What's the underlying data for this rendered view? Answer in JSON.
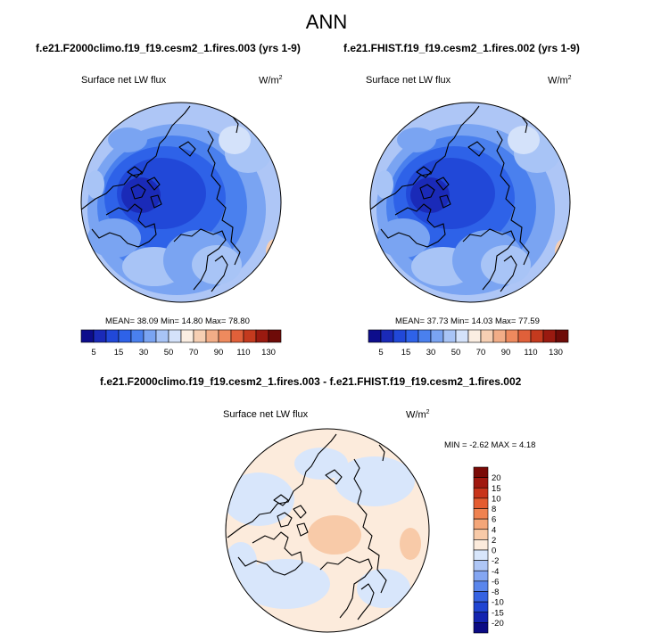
{
  "header": {
    "title": "ANN"
  },
  "panels": [
    {
      "title": "f.e21.F2000climo.f19_f19.cesm2_1.fires.003 (yrs 1-9)",
      "variable": "Surface net LW flux",
      "units": "W/m",
      "units_sup": "2",
      "stats": "MEAN= 38.09  Min= 14.80  Max= 78.80"
    },
    {
      "title": "f.e21.FHIST.f19_f19.cesm2_1.fires.002 (yrs 1-9)",
      "variable": "Surface net LW flux",
      "units": "W/m",
      "units_sup": "2",
      "stats": "MEAN= 37.73  Min= 14.03  Max= 77.59"
    },
    {
      "title": "f.e21.F2000climo.f19_f19.cesm2_1.fires.003 - f.e21.FHIST.f19_f19.cesm2_1.fires.002",
      "variable": "Surface net LW flux",
      "units": "W/m",
      "units_sup": "2",
      "stats": "MIN =  -2.62 MAX =   4.18"
    }
  ],
  "chart_data": [
    {
      "type": "heatmap",
      "projection": "north-polar-stereographic",
      "title": "f.e21.F2000climo.f19_f19.cesm2_1.fires.003 (yrs 1-9)",
      "variable": "Surface net LW flux",
      "units": "W/m2",
      "mean": 38.09,
      "min": 14.8,
      "max": 78.8,
      "colorbar": {
        "orientation": "horizontal",
        "levels": [
          5,
          10,
          15,
          20,
          30,
          40,
          50,
          60,
          70,
          80,
          90,
          100,
          110,
          120,
          130
        ],
        "tick_labels": [
          "5",
          "15",
          "30",
          "50",
          "70",
          "90",
          "110",
          "130"
        ],
        "colors": [
          "#0d0d8c",
          "#1a2ab8",
          "#2148d8",
          "#2e62e8",
          "#4a80ee",
          "#7aa4f2",
          "#a8c4f6",
          "#d4e2fa",
          "#fbeee2",
          "#f6cfb3",
          "#f2ad87",
          "#ee8a5e",
          "#e0603a",
          "#c43a1e",
          "#9a1a10",
          "#6e0b08"
        ]
      }
    },
    {
      "type": "heatmap",
      "projection": "north-polar-stereographic",
      "title": "f.e21.FHIST.f19_f19.cesm2_1.fires.002 (yrs 1-9)",
      "variable": "Surface net LW flux",
      "units": "W/m2",
      "mean": 37.73,
      "min": 14.03,
      "max": 77.59,
      "colorbar": {
        "orientation": "horizontal",
        "levels": [
          5,
          10,
          15,
          20,
          30,
          40,
          50,
          60,
          70,
          80,
          90,
          100,
          110,
          120,
          130
        ],
        "tick_labels": [
          "5",
          "15",
          "30",
          "50",
          "70",
          "90",
          "110",
          "130"
        ],
        "colors": [
          "#0d0d8c",
          "#1a2ab8",
          "#2148d8",
          "#2e62e8",
          "#4a80ee",
          "#7aa4f2",
          "#a8c4f6",
          "#d4e2fa",
          "#fbeee2",
          "#f6cfb3",
          "#f2ad87",
          "#ee8a5e",
          "#e0603a",
          "#c43a1e",
          "#9a1a10",
          "#6e0b08"
        ]
      }
    },
    {
      "type": "heatmap",
      "projection": "north-polar-stereographic",
      "title": "f.e21.F2000climo.f19_f19.cesm2_1.fires.003 - f.e21.FHIST.f19_f19.cesm2_1.fires.002",
      "variable": "Surface net LW flux",
      "units": "W/m2",
      "min": -2.62,
      "max": 4.18,
      "colorbar": {
        "orientation": "vertical",
        "levels": [
          -20,
          -15,
          -10,
          -8,
          -6,
          -4,
          -2,
          0,
          2,
          4,
          6,
          8,
          10,
          15,
          20
        ],
        "tick_labels": [
          "-20",
          "-15",
          "-10",
          "-8",
          "-6",
          "-4",
          "-2",
          "0",
          "2",
          "4",
          "6",
          "8",
          "10",
          "15",
          "20"
        ],
        "colors": [
          "#0b0b84",
          "#1324b0",
          "#1f44d2",
          "#3562e2",
          "#5a86ec",
          "#84a6f2",
          "#aec6f6",
          "#d8e6fb",
          "#fcebdc",
          "#f8caa8",
          "#f4a679",
          "#ef8250",
          "#e45c30",
          "#c8341a",
          "#a0180e",
          "#7a0a06"
        ]
      }
    }
  ]
}
